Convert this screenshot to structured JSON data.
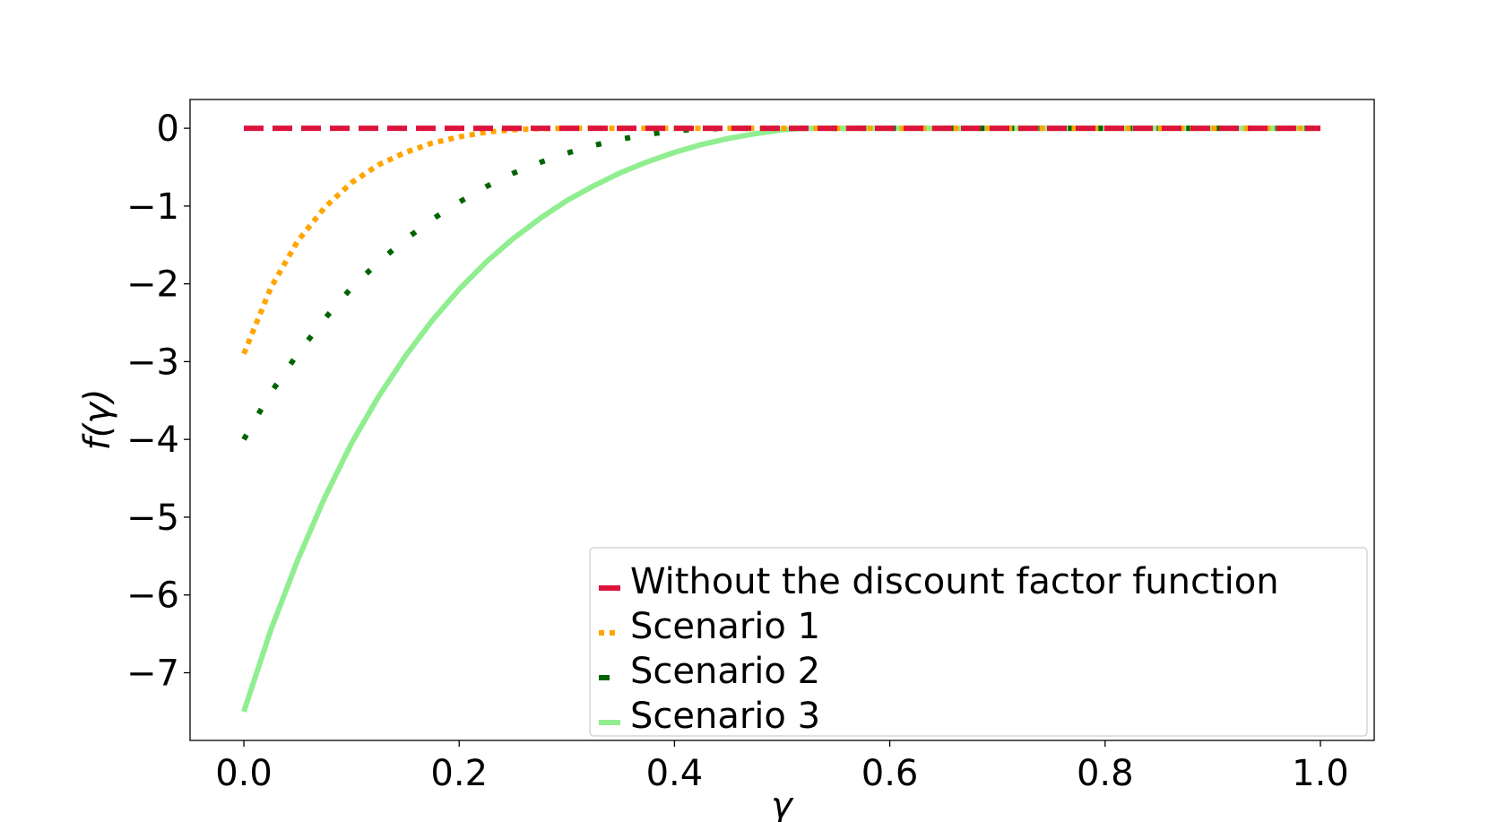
{
  "chart_data": {
    "type": "line",
    "title": "",
    "xlabel": "γ",
    "ylabel": "f(γ)",
    "xlim": [
      -0.05,
      1.05
    ],
    "ylim": [
      -7.87,
      0.37
    ],
    "x_ticks": [
      0.0,
      0.2,
      0.4,
      0.6,
      0.8,
      1.0
    ],
    "x_tick_labels": [
      "0.0",
      "0.2",
      "0.4",
      "0.6",
      "0.8",
      "1.0"
    ],
    "y_ticks": [
      0,
      -1,
      -2,
      -3,
      -4,
      -5,
      -6,
      -7
    ],
    "y_tick_labels": [
      "0",
      "−1",
      "−2",
      "−3",
      "−4",
      "−5",
      "−6",
      "−7"
    ],
    "grid": false,
    "legend_position": "lower-right",
    "series": [
      {
        "name": "Without the discount factor function",
        "color": "#dc143c",
        "style": "dashed",
        "x": [
          0.0,
          0.1,
          0.2,
          0.3,
          0.4,
          0.5,
          0.6,
          0.7,
          0.8,
          0.9,
          1.0
        ],
        "y": [
          0,
          0,
          0,
          0,
          0,
          0,
          0,
          0,
          0,
          0,
          0
        ]
      },
      {
        "name": "Scenario 1",
        "color": "#ffa500",
        "style": "dotted",
        "x": [
          0.0,
          0.025,
          0.05,
          0.075,
          0.1,
          0.125,
          0.15,
          0.175,
          0.2,
          0.225,
          0.25,
          0.275,
          0.3,
          0.4,
          0.5,
          0.6,
          0.7,
          0.8,
          0.9,
          1.0
        ],
        "y": [
          -2.9,
          -2.05,
          -1.45,
          -1.02,
          -0.7,
          -0.47,
          -0.31,
          -0.19,
          -0.11,
          -0.05,
          -0.02,
          -0.005,
          0,
          0,
          0,
          0,
          0,
          0,
          0,
          0
        ]
      },
      {
        "name": "Scenario 2",
        "color": "#006400",
        "style": "dashdot",
        "x": [
          0.0,
          0.025,
          0.05,
          0.075,
          0.1,
          0.125,
          0.15,
          0.175,
          0.2,
          0.225,
          0.25,
          0.275,
          0.3,
          0.325,
          0.35,
          0.375,
          0.4,
          0.425,
          0.45,
          0.5,
          0.6,
          0.7,
          0.8,
          0.9,
          1.0
        ],
        "y": [
          -4.0,
          -3.4,
          -2.9,
          -2.45,
          -2.05,
          -1.72,
          -1.43,
          -1.17,
          -0.95,
          -0.75,
          -0.58,
          -0.44,
          -0.32,
          -0.22,
          -0.14,
          -0.08,
          -0.03,
          -0.01,
          0,
          0,
          0,
          0,
          0,
          0,
          0
        ]
      },
      {
        "name": "Scenario 3",
        "color": "#90ee90",
        "style": "solid",
        "x": [
          0.0,
          0.025,
          0.05,
          0.075,
          0.1,
          0.125,
          0.15,
          0.175,
          0.2,
          0.225,
          0.25,
          0.275,
          0.3,
          0.325,
          0.35,
          0.375,
          0.4,
          0.425,
          0.45,
          0.475,
          0.5,
          0.52,
          0.6,
          0.7,
          0.8,
          0.9,
          1.0
        ],
        "y": [
          -7.5,
          -6.45,
          -5.55,
          -4.75,
          -4.05,
          -3.45,
          -2.93,
          -2.47,
          -2.07,
          -1.72,
          -1.42,
          -1.16,
          -0.93,
          -0.74,
          -0.57,
          -0.43,
          -0.31,
          -0.21,
          -0.13,
          -0.07,
          -0.02,
          0,
          0,
          0,
          0,
          0,
          0
        ]
      }
    ]
  }
}
